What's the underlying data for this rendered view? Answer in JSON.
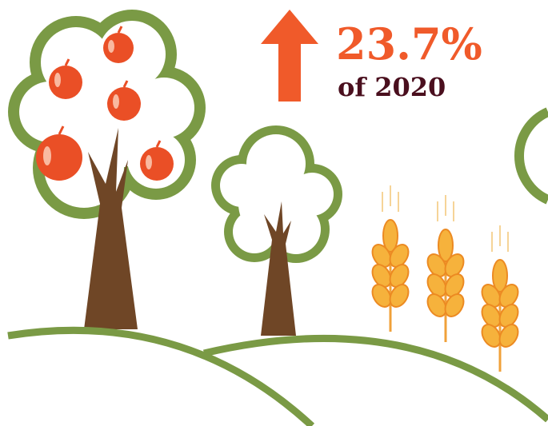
{
  "stat": {
    "value": "23.7%",
    "label": "of 2020"
  }
}
